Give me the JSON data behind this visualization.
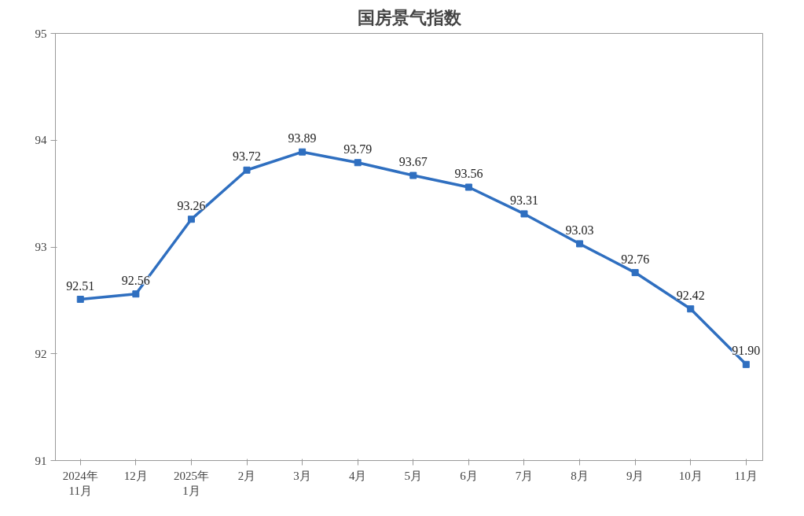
{
  "chart_data": {
    "type": "line",
    "title": "国房景气指数",
    "categories": [
      "2024年\n11月",
      "12月",
      "2025年\n1月",
      "2月",
      "3月",
      "4月",
      "5月",
      "6月",
      "7月",
      "8月",
      "9月",
      "10月",
      "11月"
    ],
    "series": [
      {
        "color": "#2f6fc0",
        "values": [
          92.51,
          92.56,
          93.26,
          93.72,
          93.89,
          93.79,
          93.67,
          93.56,
          93.31,
          93.03,
          92.76,
          92.42,
          91.9
        ],
        "value_labels": [
          "92.51",
          "92.56",
          "93.26",
          "93.72",
          "93.89",
          "93.79",
          "93.67",
          "93.56",
          "93.31",
          "93.03",
          "92.76",
          "92.42",
          "91.90"
        ]
      }
    ],
    "ylim": [
      91,
      95
    ],
    "yticks": [
      91,
      92,
      93,
      94,
      95
    ],
    "grid": false,
    "marker": "square",
    "line_style": "solid"
  }
}
